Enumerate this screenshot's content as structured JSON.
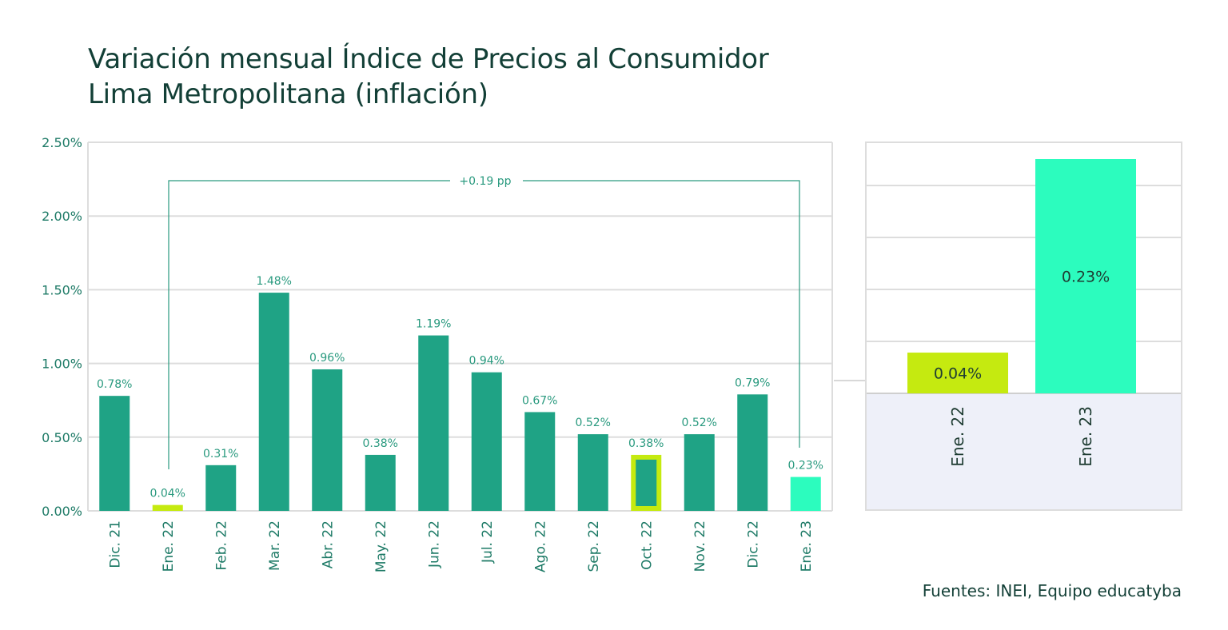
{
  "title_line1": "Variación mensual Índice de Precios al Consumidor",
  "title_line2": "Lima Metropolitana (inflación)",
  "source": "Fuentes: INEI, Equipo educatyba",
  "colors": {
    "bar": "#1fa385",
    "highlight_yellow": "#c5ea10",
    "highlight_aqua": "#2cfcbe",
    "grid": "#dddddd",
    "text": "#123f36",
    "panel_bg": "#eef0f9"
  },
  "chart_data": [
    {
      "type": "bar",
      "title": "Variación mensual Índice de Precios al Consumidor Lima Metropolitana (inflación)",
      "categories": [
        "Dic. 21",
        "Ene. 22",
        "Feb. 22",
        "Mar. 22",
        "Abr. 22",
        "May. 22",
        "Jun. 22",
        "Jul. 22",
        "Ago. 22",
        "Sep. 22",
        "Oct. 22",
        "Nov. 22",
        "Dic. 22",
        "Ene. 23"
      ],
      "values": [
        0.78,
        0.04,
        0.31,
        1.48,
        0.96,
        0.38,
        1.19,
        0.94,
        0.67,
        0.52,
        0.38,
        0.52,
        0.79,
        0.23
      ],
      "data_labels": [
        "0.78%",
        "0.04%",
        "0.31%",
        "1.48%",
        "0.96%",
        "0.38%",
        "1.19%",
        "0.94%",
        "0.67%",
        "0.52%",
        "0.38%",
        "0.52%",
        "0.79%",
        "0.23%"
      ],
      "highlight": {
        "Ene. 22": "yellow",
        "Oct. 22": "yellow-outline",
        "Ene. 23": "aqua"
      },
      "y_ticks": [
        "0.00%",
        "0.50%",
        "1.00%",
        "1.50%",
        "2.00%",
        "2.50%"
      ],
      "ylim": [
        0,
        2.5
      ],
      "xlabel": "",
      "ylabel": "",
      "grid": true,
      "annotation": {
        "text": "+0.19 pp",
        "from": "Ene. 22",
        "to": "Ene. 23"
      }
    },
    {
      "type": "bar",
      "title": "",
      "categories": [
        "Ene. 22",
        "Ene. 23"
      ],
      "values": [
        0.04,
        0.23
      ],
      "data_labels": [
        "0.04%",
        "0.23%"
      ],
      "grid": true
    }
  ]
}
